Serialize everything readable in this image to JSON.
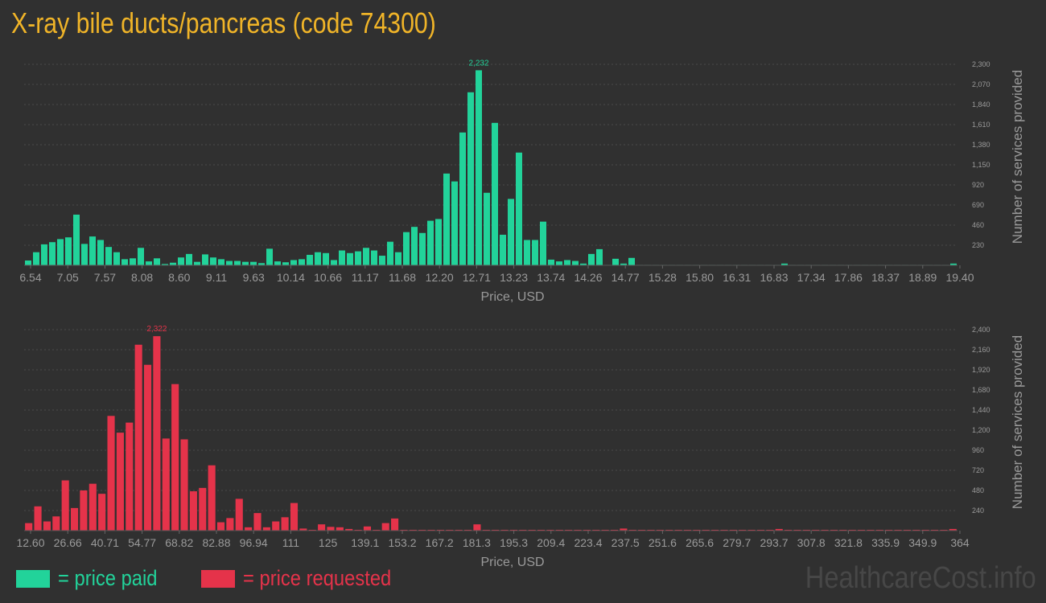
{
  "title": "X-ray bile ducts/pancreas (code 74300)",
  "watermark": "HealthcareCost.info",
  "colors": {
    "background": "#303030",
    "title": "#f0b428",
    "paid": "#22d39a",
    "requested": "#e5334a",
    "axis_text": "#9a9a9a",
    "grid": "#4a4a4a"
  },
  "legend": {
    "paid_label": "= price paid",
    "requested_label": "= price requested"
  },
  "chart_data": [
    {
      "type": "bar",
      "series_name": "price paid",
      "xlabel": "Price, USD",
      "ylabel": "Number of services provided",
      "x_tick_labels": [
        "6.54",
        "7.05",
        "7.57",
        "8.08",
        "8.60",
        "9.11",
        "9.63",
        "10.14",
        "10.66",
        "11.17",
        "11.68",
        "12.20",
        "12.71",
        "13.23",
        "13.74",
        "14.26",
        "14.77",
        "15.28",
        "15.80",
        "16.31",
        "16.83",
        "17.34",
        "17.86",
        "18.37",
        "18.89",
        "19.40"
      ],
      "y_ticks": [
        230,
        460,
        690,
        920,
        1150,
        1380,
        1610,
        1840,
        2070,
        2300
      ],
      "y_tick_labels": [
        "230",
        "460",
        "690",
        "920",
        "1,150",
        "1,380",
        "1,610",
        "1,840",
        "2,070",
        "2,300"
      ],
      "ylim": [
        0,
        2300
      ],
      "grid": true,
      "max_label": "2,232",
      "values": [
        55,
        150,
        240,
        265,
        300,
        320,
        580,
        245,
        330,
        290,
        210,
        150,
        70,
        80,
        200,
        45,
        80,
        15,
        30,
        90,
        130,
        40,
        125,
        90,
        70,
        50,
        50,
        40,
        40,
        25,
        190,
        45,
        35,
        60,
        70,
        120,
        150,
        140,
        60,
        170,
        140,
        160,
        200,
        170,
        110,
        270,
        150,
        380,
        440,
        370,
        510,
        530,
        1050,
        960,
        1520,
        1980,
        2232,
        830,
        1630,
        350,
        760,
        1290,
        290,
        290,
        500,
        65,
        45,
        60,
        50,
        20,
        130,
        185,
        5,
        75,
        20,
        85,
        5,
        5,
        5,
        5,
        5,
        5,
        5,
        5,
        5,
        5,
        5,
        5,
        5,
        5,
        5,
        5,
        5,
        5,
        20,
        5,
        5,
        5,
        5,
        5,
        5,
        5,
        5,
        5,
        5,
        5,
        5,
        5,
        5,
        5,
        5,
        5,
        5,
        5,
        5,
        20
      ]
    },
    {
      "type": "bar",
      "series_name": "price requested",
      "xlabel": "Price, USD",
      "ylabel": "Number of services provided",
      "x_tick_labels": [
        "12.60",
        "26.66",
        "40.71",
        "54.77",
        "68.82",
        "82.88",
        "96.94",
        "111",
        "125",
        "139.1",
        "153.2",
        "167.2",
        "181.3",
        "195.3",
        "209.4",
        "223.4",
        "237.5",
        "251.6",
        "265.6",
        "279.7",
        "293.7",
        "307.8",
        "321.8",
        "335.9",
        "349.9",
        "364"
      ],
      "y_ticks": [
        240,
        480,
        720,
        960,
        1200,
        1440,
        1680,
        1920,
        2160,
        2400
      ],
      "y_tick_labels": [
        "240",
        "480",
        "720",
        "960",
        "1,200",
        "1,440",
        "1,680",
        "1,920",
        "2,160",
        "2,400"
      ],
      "ylim": [
        0,
        2400
      ],
      "grid": true,
      "max_label": "2,322",
      "values": [
        90,
        290,
        110,
        170,
        600,
        270,
        480,
        560,
        440,
        1370,
        1170,
        1290,
        2220,
        1980,
        2322,
        1100,
        1750,
        1090,
        470,
        510,
        780,
        100,
        150,
        380,
        40,
        210,
        40,
        110,
        160,
        330,
        25,
        10,
        75,
        45,
        40,
        20,
        10,
        50,
        10,
        90,
        145,
        10,
        10,
        10,
        10,
        10,
        10,
        10,
        10,
        75,
        10,
        10,
        10,
        10,
        10,
        10,
        10,
        10,
        10,
        10,
        10,
        10,
        10,
        10,
        10,
        25,
        10,
        10,
        10,
        10,
        10,
        10,
        10,
        10,
        10,
        10,
        10,
        10,
        10,
        10,
        10,
        10,
        20,
        10,
        10,
        10,
        10,
        10,
        10,
        10,
        10,
        10,
        10,
        10,
        10,
        10,
        10,
        10,
        10,
        10,
        10,
        20
      ]
    }
  ]
}
